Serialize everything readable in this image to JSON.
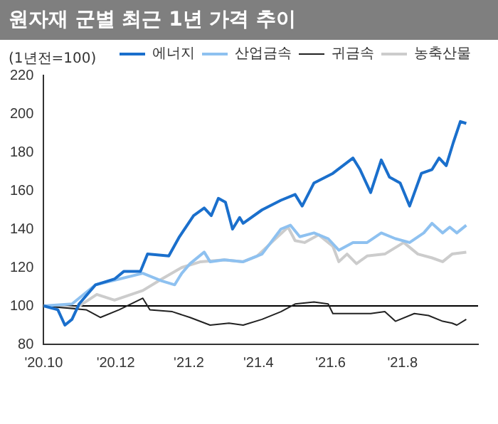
{
  "chart_data": {
    "type": "line",
    "title": "원자재 군별 최근 1년 가격 추이",
    "ylabel": "(1년전=100)",
    "xlim": [
      "2020-10-01",
      "2021-10-04"
    ],
    "xticks": [
      {
        "value": "2020-10-01",
        "label": "'20.10"
      },
      {
        "value": "2020-12-01",
        "label": "'20.12"
      },
      {
        "value": "2021-02-01",
        "label": "'21.2"
      },
      {
        "value": "2021-04-01",
        "label": "'21.4"
      },
      {
        "value": "2021-06-01",
        "label": "'21.6"
      },
      {
        "value": "2021-08-01",
        "label": "'21.8"
      }
    ],
    "ylim": [
      80,
      220
    ],
    "yticks": [
      80,
      100,
      120,
      140,
      160,
      180,
      200,
      220
    ],
    "grid": false,
    "legend": "top right",
    "line_style": "solid",
    "ref_lines": [
      {
        "axis": "y",
        "value": 100,
        "color": "#000000"
      }
    ],
    "series": [
      {
        "name": "에너지",
        "color": "#1a6fcc",
        "x": [
          "2020-10-01",
          "2020-10-13",
          "2020-10-19",
          "2020-10-25",
          "2020-10-31",
          "2020-11-14",
          "2020-11-30",
          "2020-12-08",
          "2020-12-22",
          "2020-12-28",
          "2021-01-15",
          "2021-01-24",
          "2021-02-05",
          "2021-02-14",
          "2021-02-20",
          "2021-02-26",
          "2021-03-04",
          "2021-03-10",
          "2021-03-16",
          "2021-03-19",
          "2021-04-04",
          "2021-04-20",
          "2021-05-02",
          "2021-05-08",
          "2021-05-18",
          "2021-06-03",
          "2021-06-20",
          "2021-06-26",
          "2021-07-05",
          "2021-07-14",
          "2021-07-21",
          "2021-07-30",
          "2021-08-07",
          "2021-08-17",
          "2021-08-26",
          "2021-09-01",
          "2021-09-07",
          "2021-09-13",
          "2021-09-19",
          "2021-09-24"
        ],
        "values": [
          100,
          98,
          90,
          93,
          101,
          111,
          114,
          118,
          118,
          127,
          126,
          136,
          147,
          151,
          147,
          156,
          154,
          140,
          146,
          143,
          150,
          155,
          158,
          152,
          164,
          169,
          177,
          171,
          159,
          176,
          167,
          164,
          152,
          169,
          171,
          177,
          173,
          185,
          196,
          195
        ]
      },
      {
        "name": "산업금속",
        "color": "#8ec1f0",
        "x": [
          "2020-10-01",
          "2020-10-25",
          "2020-11-14",
          "2020-12-04",
          "2020-12-24",
          "2021-01-09",
          "2021-01-20",
          "2021-01-26",
          "2021-02-02",
          "2021-02-14",
          "2021-02-19",
          "2021-03-03",
          "2021-03-19",
          "2021-04-04",
          "2021-04-20",
          "2021-04-28",
          "2021-05-06",
          "2021-05-18",
          "2021-05-30",
          "2021-06-08",
          "2021-06-20",
          "2021-07-02",
          "2021-07-14",
          "2021-07-26",
          "2021-08-07",
          "2021-08-19",
          "2021-08-26",
          "2021-09-04",
          "2021-09-10",
          "2021-09-16",
          "2021-09-24"
        ],
        "values": [
          100,
          101,
          111,
          114,
          117,
          113,
          111,
          117,
          122,
          128,
          123,
          124,
          123,
          127,
          140,
          142,
          136,
          138,
          135,
          129,
          133,
          133,
          138,
          135,
          133,
          138,
          143,
          138,
          141,
          138,
          142
        ]
      },
      {
        "name": "귀금속",
        "color": "#222222",
        "x": [
          "2020-10-01",
          "2020-11-06",
          "2020-11-18",
          "2020-12-04",
          "2020-12-24",
          "2020-12-30",
          "2021-01-18",
          "2021-02-02",
          "2021-02-19",
          "2021-03-07",
          "2021-03-19",
          "2021-04-04",
          "2021-04-20",
          "2021-05-02",
          "2021-05-18",
          "2021-05-30",
          "2021-06-03",
          "2021-06-20",
          "2021-07-05",
          "2021-07-17",
          "2021-07-26",
          "2021-08-11",
          "2021-08-23",
          "2021-09-04",
          "2021-09-12",
          "2021-09-16",
          "2021-09-24"
        ],
        "values": [
          100,
          98,
          94,
          98,
          104,
          98,
          97,
          94,
          90,
          91,
          90,
          93,
          97,
          101,
          102,
          101,
          96,
          96,
          96,
          97,
          92,
          96,
          95,
          92,
          91,
          90,
          93
        ]
      },
      {
        "name": "농축산물",
        "color": "#cccccc",
        "x": [
          "2020-10-01",
          "2020-10-29",
          "2020-11-15",
          "2020-11-30",
          "2020-12-24",
          "2021-01-09",
          "2021-01-26",
          "2021-02-11",
          "2021-03-03",
          "2021-03-19",
          "2021-03-31",
          "2021-04-12",
          "2021-04-26",
          "2021-05-02",
          "2021-05-10",
          "2021-05-22",
          "2021-06-03",
          "2021-06-08",
          "2021-06-15",
          "2021-06-23",
          "2021-07-02",
          "2021-07-17",
          "2021-08-02",
          "2021-08-14",
          "2021-08-26",
          "2021-09-04",
          "2021-09-12",
          "2021-09-24"
        ],
        "values": [
          100,
          99,
          106,
          103,
          108,
          114,
          120,
          123,
          124,
          123,
          126,
          133,
          141,
          134,
          133,
          137,
          131,
          123,
          127,
          122,
          126,
          127,
          133,
          127,
          125,
          123,
          127,
          128
        ]
      }
    ]
  }
}
